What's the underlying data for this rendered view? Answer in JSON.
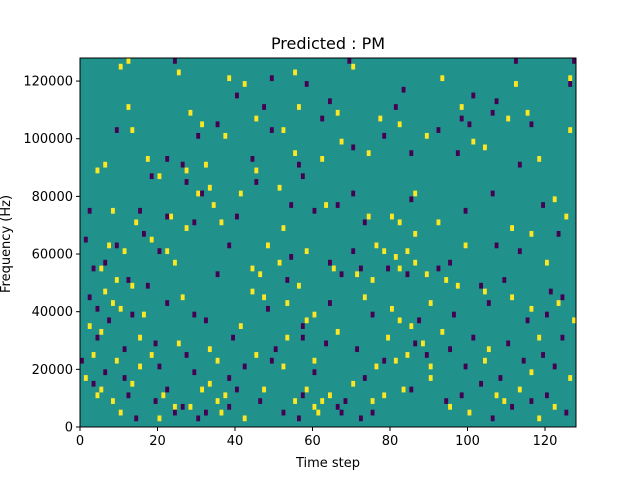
{
  "chart_data": {
    "type": "heatmap",
    "title": "Predicted : PM",
    "xlabel": "Time step",
    "ylabel": "Frequency (Hz)",
    "xlim": [
      0,
      128
    ],
    "ylim": [
      0,
      128000
    ],
    "x_ticks": [
      0,
      20,
      40,
      60,
      80,
      100,
      120
    ],
    "y_ticks": [
      0,
      20000,
      40000,
      60000,
      80000,
      100000,
      120000
    ],
    "x_tick_labels": [
      "0",
      "20",
      "40",
      "60",
      "80",
      "100",
      "120"
    ],
    "y_tick_labels": [
      "0",
      "20000",
      "40000",
      "60000",
      "80000",
      "100000",
      "120000"
    ],
    "grid": false,
    "colormap": "viridis",
    "colors": {
      "background": "#21918c",
      "high": "#fde725",
      "low": "#440154"
    },
    "cell_height": 2000,
    "high_cells": [
      [
        12,
        126000
      ],
      [
        10,
        124000
      ],
      [
        25,
        122000
      ],
      [
        38,
        120000
      ],
      [
        42,
        118000
      ],
      [
        55,
        122000
      ],
      [
        70,
        124000
      ],
      [
        93,
        120000
      ],
      [
        112,
        118000
      ],
      [
        126,
        120000
      ],
      [
        12,
        110000
      ],
      [
        28,
        108000
      ],
      [
        45,
        106000
      ],
      [
        56,
        110000
      ],
      [
        66,
        108000
      ],
      [
        77,
        106000
      ],
      [
        98,
        110000
      ],
      [
        115,
        108000
      ],
      [
        13,
        102000
      ],
      [
        31,
        104000
      ],
      [
        37,
        100000
      ],
      [
        52,
        102000
      ],
      [
        67,
        98000
      ],
      [
        82,
        104000
      ],
      [
        89,
        100000
      ],
      [
        101,
        98000
      ],
      [
        110,
        106000
      ],
      [
        126,
        102000
      ],
      [
        6,
        90000
      ],
      [
        17,
        92000
      ],
      [
        27,
        88000
      ],
      [
        32,
        90000
      ],
      [
        45,
        88000
      ],
      [
        55,
        94000
      ],
      [
        62,
        92000
      ],
      [
        74,
        94000
      ],
      [
        104,
        96000
      ],
      [
        118,
        92000
      ],
      [
        4,
        88000
      ],
      [
        20,
        86000
      ],
      [
        30,
        80000
      ],
      [
        33,
        82000
      ],
      [
        41,
        80000
      ],
      [
        51,
        82000
      ],
      [
        86,
        80000
      ],
      [
        122,
        78000
      ],
      [
        8,
        74000
      ],
      [
        14,
        70000
      ],
      [
        23,
        72000
      ],
      [
        27,
        68000
      ],
      [
        34,
        76000
      ],
      [
        36,
        70000
      ],
      [
        52,
        68000
      ],
      [
        63,
        76000
      ],
      [
        74,
        72000
      ],
      [
        80,
        72000
      ],
      [
        82,
        70000
      ],
      [
        86,
        66000
      ],
      [
        92,
        70000
      ],
      [
        111,
        68000
      ],
      [
        116,
        66000
      ],
      [
        125,
        72000
      ],
      [
        7,
        62000
      ],
      [
        11,
        60000
      ],
      [
        18,
        64000
      ],
      [
        22,
        60000
      ],
      [
        48,
        62000
      ],
      [
        51,
        56000
      ],
      [
        58,
        60000
      ],
      [
        76,
        62000
      ],
      [
        78,
        60000
      ],
      [
        81,
        58000
      ],
      [
        84,
        60000
      ],
      [
        99,
        62000
      ],
      [
        120,
        56000
      ],
      [
        5,
        54000
      ],
      [
        9,
        50000
      ],
      [
        13,
        48000
      ],
      [
        24,
        56000
      ],
      [
        44,
        54000
      ],
      [
        46,
        52000
      ],
      [
        56,
        48000
      ],
      [
        65,
        54000
      ],
      [
        71,
        52000
      ],
      [
        75,
        50000
      ],
      [
        82,
        54000
      ],
      [
        86,
        56000
      ],
      [
        89,
        52000
      ],
      [
        94,
        50000
      ],
      [
        97,
        48000
      ],
      [
        6,
        46000
      ],
      [
        8,
        42000
      ],
      [
        10,
        40000
      ],
      [
        16,
        38000
      ],
      [
        26,
        44000
      ],
      [
        44,
        46000
      ],
      [
        47,
        44000
      ],
      [
        53,
        42000
      ],
      [
        60,
        38000
      ],
      [
        73,
        44000
      ],
      [
        80,
        40000
      ],
      [
        82,
        36000
      ],
      [
        90,
        42000
      ],
      [
        104,
        46000
      ],
      [
        111,
        44000
      ],
      [
        116,
        40000
      ],
      [
        123,
        42000
      ],
      [
        127,
        36000
      ],
      [
        2,
        34000
      ],
      [
        5,
        32000
      ],
      [
        15,
        30000
      ],
      [
        25,
        28000
      ],
      [
        41,
        34000
      ],
      [
        53,
        30000
      ],
      [
        58,
        36000
      ],
      [
        66,
        32000
      ],
      [
        79,
        30000
      ],
      [
        85,
        34000
      ],
      [
        88,
        28000
      ],
      [
        93,
        32000
      ],
      [
        105,
        26000
      ],
      [
        118,
        30000
      ],
      [
        3,
        24000
      ],
      [
        9,
        22000
      ],
      [
        15,
        20000
      ],
      [
        18,
        24000
      ],
      [
        33,
        26000
      ],
      [
        35,
        22000
      ],
      [
        45,
        24000
      ],
      [
        52,
        20000
      ],
      [
        60,
        22000
      ],
      [
        76,
        20000
      ],
      [
        81,
        22000
      ],
      [
        84,
        24000
      ],
      [
        90,
        20000
      ],
      [
        104,
        22000
      ],
      [
        116,
        18000
      ],
      [
        126,
        16000
      ],
      [
        1,
        16000
      ],
      [
        5,
        12000
      ],
      [
        8,
        8000
      ],
      [
        13,
        14000
      ],
      [
        21,
        10000
      ],
      [
        24,
        6000
      ],
      [
        31,
        12000
      ],
      [
        33,
        14000
      ],
      [
        35,
        8000
      ],
      [
        37,
        10000
      ],
      [
        47,
        12000
      ],
      [
        55,
        8000
      ],
      [
        60,
        6000
      ],
      [
        62,
        8000
      ],
      [
        64,
        10000
      ],
      [
        70,
        14000
      ],
      [
        75,
        8000
      ],
      [
        83,
        12000
      ],
      [
        90,
        16000
      ],
      [
        100,
        4000
      ],
      [
        109,
        8000
      ],
      [
        113,
        12000
      ],
      [
        122,
        6000
      ],
      [
        4,
        10000
      ],
      [
        10,
        4000
      ],
      [
        20,
        2000
      ],
      [
        28,
        6000
      ],
      [
        36,
        4000
      ],
      [
        42,
        2000
      ],
      [
        58,
        12000
      ],
      [
        61,
        4000
      ],
      [
        78,
        10000
      ],
      [
        95,
        6000
      ],
      [
        107,
        10000
      ],
      [
        118,
        2000
      ]
    ],
    "low_cells": [
      [
        24,
        126000
      ],
      [
        69,
        126000
      ],
      [
        112,
        126000
      ],
      [
        127,
        126000
      ],
      [
        49,
        120000
      ],
      [
        58,
        118000
      ],
      [
        83,
        116000
      ],
      [
        101,
        114000
      ],
      [
        107,
        112000
      ],
      [
        126,
        118000
      ],
      [
        40,
        114000
      ],
      [
        47,
        110000
      ],
      [
        64,
        112000
      ],
      [
        81,
        110000
      ],
      [
        98,
        106000
      ],
      [
        106,
        108000
      ],
      [
        9,
        102000
      ],
      [
        30,
        100000
      ],
      [
        35,
        104000
      ],
      [
        49,
        102000
      ],
      [
        62,
        106000
      ],
      [
        78,
        100000
      ],
      [
        92,
        102000
      ],
      [
        100,
        104000
      ],
      [
        116,
        104000
      ],
      [
        22,
        92000
      ],
      [
        26,
        90000
      ],
      [
        44,
        92000
      ],
      [
        56,
        90000
      ],
      [
        70,
        96000
      ],
      [
        85,
        94000
      ],
      [
        97,
        94000
      ],
      [
        113,
        90000
      ],
      [
        18,
        86000
      ],
      [
        27,
        84000
      ],
      [
        31,
        80000
      ],
      [
        45,
        84000
      ],
      [
        57,
        86000
      ],
      [
        70,
        80000
      ],
      [
        85,
        78000
      ],
      [
        106,
        80000
      ],
      [
        2,
        74000
      ],
      [
        15,
        74000
      ],
      [
        22,
        72000
      ],
      [
        29,
        70000
      ],
      [
        40,
        72000
      ],
      [
        54,
        76000
      ],
      [
        60,
        74000
      ],
      [
        66,
        76000
      ],
      [
        73,
        70000
      ],
      [
        99,
        74000
      ],
      [
        119,
        76000
      ],
      [
        123,
        66000
      ],
      [
        1,
        64000
      ],
      [
        9,
        62000
      ],
      [
        16,
        66000
      ],
      [
        20,
        60000
      ],
      [
        38,
        62000
      ],
      [
        54,
        58000
      ],
      [
        64,
        56000
      ],
      [
        70,
        60000
      ],
      [
        79,
        54000
      ],
      [
        95,
        56000
      ],
      [
        107,
        62000
      ],
      [
        113,
        60000
      ],
      [
        3,
        54000
      ],
      [
        6,
        56000
      ],
      [
        12,
        50000
      ],
      [
        17,
        48000
      ],
      [
        35,
        52000
      ],
      [
        53,
        50000
      ],
      [
        67,
        52000
      ],
      [
        72,
        54000
      ],
      [
        84,
        52000
      ],
      [
        92,
        54000
      ],
      [
        103,
        48000
      ],
      [
        109,
        50000
      ],
      [
        121,
        46000
      ],
      [
        2,
        44000
      ],
      [
        4,
        40000
      ],
      [
        7,
        36000
      ],
      [
        13,
        38000
      ],
      [
        22,
        42000
      ],
      [
        29,
        38000
      ],
      [
        32,
        36000
      ],
      [
        48,
        40000
      ],
      [
        57,
        34000
      ],
      [
        64,
        42000
      ],
      [
        75,
        38000
      ],
      [
        87,
        36000
      ],
      [
        96,
        38000
      ],
      [
        105,
        42000
      ],
      [
        115,
        36000
      ],
      [
        120,
        38000
      ],
      [
        124,
        44000
      ],
      [
        4,
        30000
      ],
      [
        11,
        26000
      ],
      [
        19,
        28000
      ],
      [
        27,
        24000
      ],
      [
        39,
        30000
      ],
      [
        50,
        26000
      ],
      [
        57,
        30000
      ],
      [
        63,
        28000
      ],
      [
        71,
        26000
      ],
      [
        86,
        28000
      ],
      [
        95,
        26000
      ],
      [
        101,
        30000
      ],
      [
        110,
        28000
      ],
      [
        119,
        24000
      ],
      [
        124,
        30000
      ],
      [
        0,
        22000
      ],
      [
        6,
        18000
      ],
      [
        11,
        16000
      ],
      [
        20,
        20000
      ],
      [
        29,
        18000
      ],
      [
        38,
        16000
      ],
      [
        42,
        20000
      ],
      [
        49,
        22000
      ],
      [
        60,
        18000
      ],
      [
        73,
        16000
      ],
      [
        78,
        22000
      ],
      [
        89,
        24000
      ],
      [
        99,
        20000
      ],
      [
        108,
        16000
      ],
      [
        114,
        22000
      ],
      [
        122,
        20000
      ],
      [
        3,
        14000
      ],
      [
        12,
        10000
      ],
      [
        19,
        8000
      ],
      [
        22,
        12000
      ],
      [
        26,
        6000
      ],
      [
        32,
        4000
      ],
      [
        40,
        12000
      ],
      [
        46,
        8000
      ],
      [
        52,
        4000
      ],
      [
        57,
        10000
      ],
      [
        66,
        6000
      ],
      [
        68,
        8000
      ],
      [
        75,
        4000
      ],
      [
        85,
        12000
      ],
      [
        94,
        8000
      ],
      [
        103,
        14000
      ],
      [
        111,
        6000
      ],
      [
        120,
        10000
      ],
      [
        14,
        2000
      ],
      [
        24,
        4000
      ],
      [
        30,
        2000
      ],
      [
        38,
        6000
      ],
      [
        56,
        2000
      ],
      [
        67,
        4000
      ],
      [
        72,
        2000
      ],
      [
        98,
        10000
      ],
      [
        106,
        2000
      ],
      [
        116,
        8000
      ],
      [
        125,
        4000
      ]
    ]
  }
}
